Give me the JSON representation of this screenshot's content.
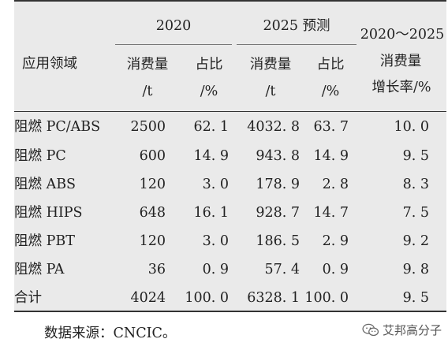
{
  "header": {
    "domain_label": "应用领域",
    "group_2020": "2020",
    "group_2025": "2025 预测",
    "group_growth": "2020～2025",
    "cons_label": "消费量",
    "cons_unit": "/t",
    "share_label": "占比",
    "share_unit": "/%",
    "growth_line1": "消费量",
    "growth_line2": "增长率/%"
  },
  "rows": [
    {
      "domain": "阻燃 PC/ABS",
      "cons2020": "2500",
      "share2020": "62. 1",
      "cons2025": "4032. 8",
      "share2025": "63. 7",
      "growth": "10. 0"
    },
    {
      "domain": "阻燃 PC",
      "cons2020": "600",
      "share2020": "14. 9",
      "cons2025": "943. 8",
      "share2025": "14. 9",
      "growth": "9. 5"
    },
    {
      "domain": "阻燃 ABS",
      "cons2020": "120",
      "share2020": "3. 0",
      "cons2025": "178. 9",
      "share2025": "2. 8",
      "growth": "8. 3"
    },
    {
      "domain": "阻燃 HIPS",
      "cons2020": "648",
      "share2020": "16. 1",
      "cons2025": "928. 7",
      "share2025": "14. 7",
      "growth": "7. 5"
    },
    {
      "domain": "阻燃 PBT",
      "cons2020": "120",
      "share2020": "3. 0",
      "cons2025": "186. 5",
      "share2025": "2. 9",
      "growth": "9. 2"
    },
    {
      "domain": "阻燃 PA",
      "cons2020": "36",
      "share2020": "0. 9",
      "cons2025": "57. 4",
      "share2025": "0. 9",
      "growth": "9. 8"
    },
    {
      "domain": "合计",
      "cons2020": "4024",
      "share2020": "100. 0",
      "cons2025": "6328. 1",
      "share2025": "100. 0",
      "growth": "9. 5"
    }
  ],
  "footer": {
    "source": "数据来源：CNCIC。",
    "watermark": "艾邦高分子"
  }
}
